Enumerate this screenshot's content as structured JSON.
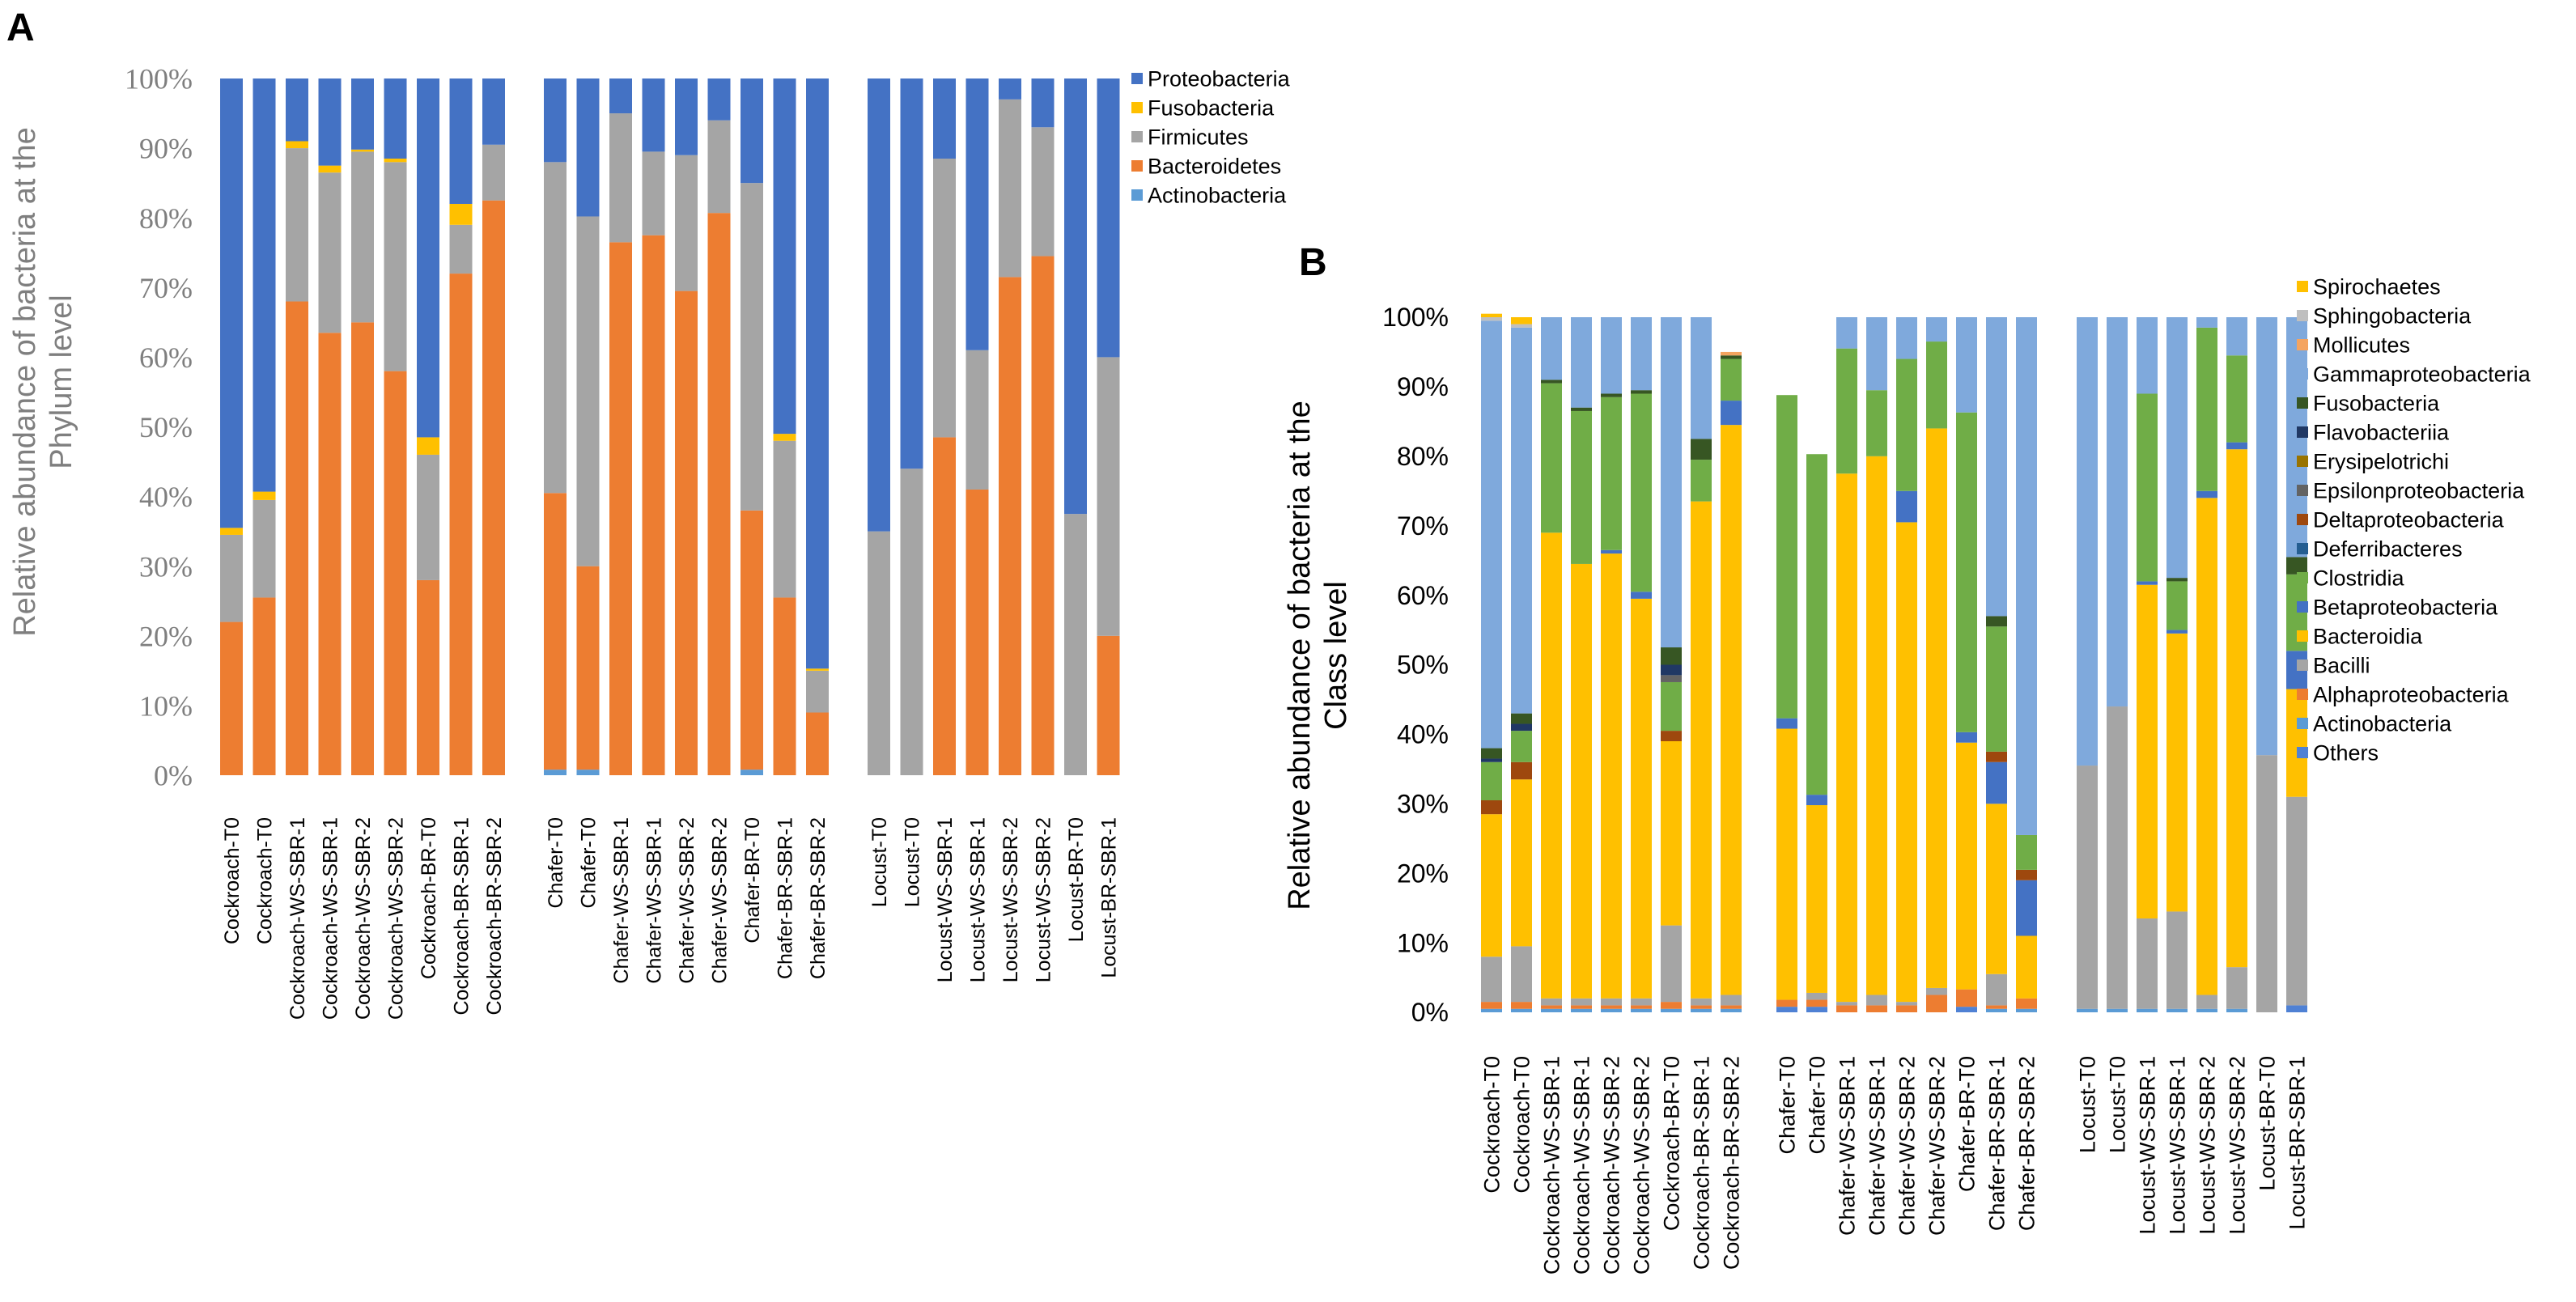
{
  "colors": {
    "Proteobacteria": "#4472c4",
    "Fusobacteria": "#ffc000",
    "Firmicutes": "#a5a5a5",
    "Bacteroidetes": "#ed7d31",
    "Actinobacteria": "#5b9bd5",
    "Spirochaetes": "#ffc000",
    "Sphingobacteria": "#bfbfbf",
    "Mollicutes": "#f4a460",
    "Gammaproteobacteria": "#7fa9dc",
    "Fusobacteria_c": "#375623",
    "Flavobacteriia": "#203864",
    "Erysipelotrichi": "#997300",
    "Epsilonproteobacteria": "#636363",
    "Deltaproteobacteria": "#9e480e",
    "Deferribacteres": "#255e91",
    "Clostridia": "#70ad47",
    "Betaproteobacteria": "#4472c4",
    "Bacteroidia": "#ffc000",
    "Bacilli": "#a5a5a5",
    "Alphaproteobacteria": "#ed7d31",
    "Actinobacteria_c": "#5b9bd5",
    "Others": "#4f81d4"
  },
  "chart_data": [
    {
      "panel_label": "A",
      "type": "bar",
      "stacked": true,
      "ylabel_line1": "Relative abundance of bacteria at the",
      "ylabel_line2": "Phylum level",
      "yticks": [
        "0%",
        "10%",
        "20%",
        "30%",
        "40%",
        "50%",
        "60%",
        "70%",
        "80%",
        "90%",
        "100%"
      ],
      "ylim": [
        0,
        100
      ],
      "legend_position": "top-right",
      "legend": [
        "Proteobacteria",
        "Fusobacteria",
        "Firmicutes",
        "Bacteroidetes",
        "Actinobacteria"
      ],
      "legend_colors": [
        "#4472c4",
        "#ffc000",
        "#a5a5a5",
        "#ed7d31",
        "#5b9bd5"
      ],
      "groups": [
        {
          "categories": [
            "Cockroach-T0",
            "Cockroach-T0",
            "Cockroach-WS-SBR-1",
            "Cockroach-WS-SBR-1",
            "Cockroach-WS-SBR-2",
            "Cockroach-WS-SBR-2",
            "Cockroach-BR-T0",
            "Cockroach-BR-SBR-1",
            "Cockroach-BR-SBR-2"
          ]
        },
        {
          "categories": [
            "Chafer-T0",
            "Chafer-T0",
            "Chafer-WS-SBR-1",
            "Chafer-WS-SBR-1",
            "Chafer-WS-SBR-2",
            "Chafer-WS-SBR-2",
            "Chafer-BR-T0",
            "Chafer-BR-SBR-1",
            "Chafer-BR-SBR-2"
          ]
        },
        {
          "categories": [
            "Locust-T0",
            "Locust-T0",
            "Locust-WS-SBR-1",
            "Locust-WS-SBR-1",
            "Locust-WS-SBR-2",
            "Locust-WS-SBR-2",
            "Locust-BR-T0",
            "Locust-BR-SBR-1"
          ]
        }
      ],
      "series_order_bottom_to_top": [
        "Actinobacteria",
        "Bacteroidetes",
        "Firmicutes",
        "Fusobacteria",
        "Proteobacteria"
      ],
      "values": [
        [
          [
            0,
            22,
            12.5,
            1,
            64.5
          ],
          [
            0,
            25.5,
            14,
            1.2,
            59.3
          ],
          [
            0,
            68,
            22,
            1,
            9
          ],
          [
            0,
            63.5,
            23,
            1,
            12.5
          ],
          [
            0,
            65,
            24.5,
            0.3,
            10.2
          ],
          [
            0,
            58,
            30,
            0.5,
            11.5
          ],
          [
            0,
            28,
            18,
            2.5,
            51.5
          ],
          [
            0,
            72,
            7,
            3,
            18
          ],
          [
            0,
            82.5,
            8,
            0,
            9.5
          ]
        ],
        [
          [
            0.8,
            39.7,
            47.5,
            0,
            12
          ],
          [
            0.8,
            29.2,
            50.2,
            0,
            19.8
          ],
          [
            0,
            76.5,
            18.5,
            0,
            5
          ],
          [
            0,
            77.5,
            12,
            0,
            10.5
          ],
          [
            0,
            69.5,
            19.5,
            0,
            11
          ],
          [
            0,
            80.7,
            13.3,
            0,
            6
          ],
          [
            0.8,
            37.2,
            47,
            0,
            15
          ],
          [
            0,
            25.5,
            22.5,
            1,
            51
          ],
          [
            0,
            9,
            6,
            0.3,
            84.7
          ]
        ],
        [
          [
            0,
            0,
            35,
            0,
            65
          ],
          [
            0,
            0,
            44,
            0,
            56
          ],
          [
            0,
            48.5,
            40,
            0,
            11.5
          ],
          [
            0,
            41,
            20,
            0,
            39
          ],
          [
            0,
            71.5,
            25.5,
            0,
            3
          ],
          [
            0,
            74.5,
            18.5,
            0,
            7
          ],
          [
            0,
            0,
            37.5,
            0,
            62.5
          ],
          [
            0,
            20,
            40,
            0,
            40
          ]
        ]
      ]
    },
    {
      "panel_label": "B",
      "type": "bar",
      "stacked": true,
      "ylabel_line1": "Relative abundance of bacteria at the",
      "ylabel_line2": "Class level",
      "yticks": [
        "0%",
        "10%",
        "20%",
        "30%",
        "40%",
        "50%",
        "60%",
        "70%",
        "80%",
        "90%",
        "100%"
      ],
      "ylim": [
        0,
        100
      ],
      "legend_position": "right",
      "legend": [
        "Spirochaetes",
        "Sphingobacteria",
        "Mollicutes",
        "Gammaproteobacteria",
        "Fusobacteria",
        "Flavobacteriia",
        "Erysipelotrichi",
        "Epsilonproteobacteria",
        "Deltaproteobacteria",
        "Deferribacteres",
        "Clostridia",
        "Betaproteobacteria",
        "Bacteroidia",
        "Bacilli",
        "Alphaproteobacteria",
        "Actinobacteria",
        "Others"
      ],
      "legend_colors": [
        "#ffc000",
        "#bfbfbf",
        "#f4a460",
        "#7fa9dc",
        "#375623",
        "#203864",
        "#997300",
        "#636363",
        "#9e480e",
        "#255e91",
        "#70ad47",
        "#4472c4",
        "#ffc000",
        "#a5a5a5",
        "#ed7d31",
        "#5b9bd5",
        "#4f81d4"
      ],
      "groups": [
        {
          "categories": [
            "Cockroach-T0",
            "Cockroach-T0",
            "Cockroach-WS-SBR-1",
            "Cockroach-WS-SBR-1",
            "Cockroach-WS-SBR-2",
            "Cockroach-WS-SBR-2",
            "Cockroach-BR-T0",
            "Cockroach-BR-SBR-1",
            "Cockroach-BR-SBR-2"
          ]
        },
        {
          "categories": [
            "Chafer-T0",
            "Chafer-T0",
            "Chafer-WS-SBR-1",
            "Chafer-WS-SBR-1",
            "Chafer-WS-SBR-2",
            "Chafer-WS-SBR-2",
            "Chafer-BR-T0",
            "Chafer-BR-SBR-1",
            "Chafer-BR-SBR-2"
          ]
        },
        {
          "categories": [
            "Locust-T0",
            "Locust-T0",
            "Locust-WS-SBR-1",
            "Locust-WS-SBR-1",
            "Locust-WS-SBR-2",
            "Locust-WS-SBR-2",
            "Locust-BR-T0",
            "Locust-BR-SBR-1"
          ]
        }
      ],
      "series_order_bottom_to_top": [
        "Others",
        "Actinobacteria",
        "Alphaproteobacteria",
        "Bacilli",
        "Bacteroidia",
        "Betaproteobacteria",
        "Deferribacteres",
        "Deltaproteobacteria",
        "Clostridia",
        "Epsilonproteobacteria",
        "Erysipelotrichi",
        "Flavobacteriia",
        "Fusobacteria",
        "Gammaproteobacteria",
        "Mollicutes",
        "Sphingobacteria",
        "Spirochaetes"
      ],
      "segment_keys": [
        "Others",
        "Actinobacteria_c",
        "Alphaproteobacteria",
        "Bacilli",
        "Bacteroidia",
        "Betaproteobacteria",
        "Deferribacteres",
        "Deltaproteobacteria",
        "Clostridia",
        "Epsilonproteobacteria",
        "Erysipelotrichi",
        "Flavobacteriia",
        "Fusobacteria_c",
        "Gammaproteobacteria",
        "Mollicutes",
        "Sphingobacteria",
        "Spirochaetes"
      ],
      "values": [
        [
          [
            0,
            0.5,
            1,
            6.5,
            20.5,
            0,
            0,
            2,
            5.5,
            0,
            0,
            0.5,
            1.5,
            61.5,
            0,
            0.5,
            0.5
          ],
          [
            0,
            0.5,
            1,
            8,
            24,
            0,
            0,
            2.5,
            4.5,
            0,
            0,
            1,
            1.5,
            55.5,
            0,
            0.5,
            1
          ],
          [
            0,
            0.5,
            0.5,
            1,
            67,
            0,
            0,
            0,
            21.5,
            0,
            0,
            0,
            0.5,
            9,
            0,
            0,
            0
          ],
          [
            0,
            0.5,
            0.5,
            1,
            62.5,
            0,
            0,
            0,
            22,
            0,
            0,
            0,
            0.5,
            13,
            0,
            0,
            0
          ],
          [
            0,
            0.5,
            0.5,
            1,
            64,
            0.5,
            0,
            0,
            22,
            0,
            0,
            0,
            0.5,
            11,
            0,
            0,
            0
          ],
          [
            0,
            0.5,
            0.5,
            1,
            57.5,
            1,
            0,
            0,
            28.5,
            0,
            0,
            0,
            0.5,
            10.5,
            0,
            0,
            0
          ],
          [
            0,
            0.5,
            1,
            11,
            26.5,
            0,
            0,
            1.5,
            7,
            1,
            0,
            1.5,
            2.5,
            47.5,
            0,
            0,
            0
          ],
          [
            0,
            0.5,
            0.5,
            1,
            71.5,
            0,
            0,
            0,
            6,
            0,
            0,
            0,
            3,
            17.5,
            0,
            0,
            0
          ],
          [
            0,
            0.5,
            0.5,
            1.5,
            82,
            3.5,
            0,
            0,
            6,
            0,
            0,
            0,
            0.5,
            0,
            0.5,
            0,
            0
          ]
        ],
        [
          [
            0.8,
            0,
            1,
            0,
            39,
            1.5,
            0,
            0,
            46.5,
            0,
            0,
            0,
            0,
            0,
            0,
            0,
            0
          ],
          [
            0.8,
            0,
            1,
            1,
            27,
            1.5,
            0,
            0,
            49,
            0,
            0,
            0,
            0,
            0,
            0,
            0,
            0
          ],
          [
            0,
            0,
            1,
            0.5,
            76,
            0,
            0,
            0,
            18,
            0,
            0,
            0,
            0,
            4.5,
            0,
            0,
            0
          ],
          [
            0,
            0,
            1,
            1.5,
            77.5,
            0,
            0,
            0,
            9.5,
            0,
            0,
            0,
            0,
            10.5,
            0,
            0,
            0
          ],
          [
            0,
            0,
            1,
            0.5,
            69,
            4.5,
            0,
            0,
            19,
            0,
            0,
            0,
            0,
            6,
            0,
            0,
            0
          ],
          [
            0,
            0,
            2.5,
            1,
            80.5,
            0,
            0,
            0,
            12.5,
            0,
            0,
            0,
            0,
            3.5,
            0,
            0,
            0
          ],
          [
            0.8,
            0,
            2.5,
            0,
            35.5,
            1.5,
            0,
            0,
            46,
            0,
            0,
            0,
            0,
            13.7,
            0,
            0,
            0
          ],
          [
            0,
            0.5,
            0.5,
            4.5,
            24.5,
            6,
            0,
            1.5,
            18,
            0,
            0,
            0,
            1.5,
            43,
            0,
            0,
            0
          ],
          [
            0,
            0.5,
            1.5,
            0,
            9,
            8,
            0,
            1.5,
            5,
            0,
            0,
            0,
            0,
            74.5,
            0,
            0,
            0
          ]
        ],
        [
          [
            0,
            0.5,
            0,
            35,
            0,
            0,
            0,
            0,
            0,
            0,
            0,
            0,
            0,
            64.5,
            0,
            0,
            0
          ],
          [
            0,
            0.5,
            0,
            43.5,
            0,
            0,
            0,
            0,
            0,
            0,
            0,
            0,
            0,
            56,
            0,
            0,
            0
          ],
          [
            0,
            0.5,
            0,
            13,
            48,
            0.5,
            0,
            0,
            27,
            0,
            0,
            0,
            0,
            11,
            0,
            0,
            0
          ],
          [
            0,
            0.5,
            0,
            14,
            40,
            0.5,
            0,
            0,
            7,
            0,
            0,
            0,
            0.5,
            37.5,
            0,
            0,
            0
          ],
          [
            0,
            0.5,
            0,
            2,
            71.5,
            1,
            0,
            0,
            23.5,
            0,
            0,
            0,
            0,
            1.5,
            0,
            0,
            0
          ],
          [
            0,
            0.5,
            0,
            6,
            74.5,
            1,
            0,
            0,
            12.5,
            0,
            0,
            0,
            0,
            5.5,
            0,
            0,
            0
          ],
          [
            0,
            0,
            0,
            37,
            0,
            0,
            0,
            0,
            0,
            0,
            0,
            0,
            0,
            63,
            0,
            0,
            0
          ],
          [
            1,
            0,
            0,
            30,
            15.5,
            5.5,
            0,
            0,
            11,
            0,
            0,
            0,
            2.5,
            34.5,
            0,
            0,
            0
          ]
        ]
      ]
    }
  ]
}
